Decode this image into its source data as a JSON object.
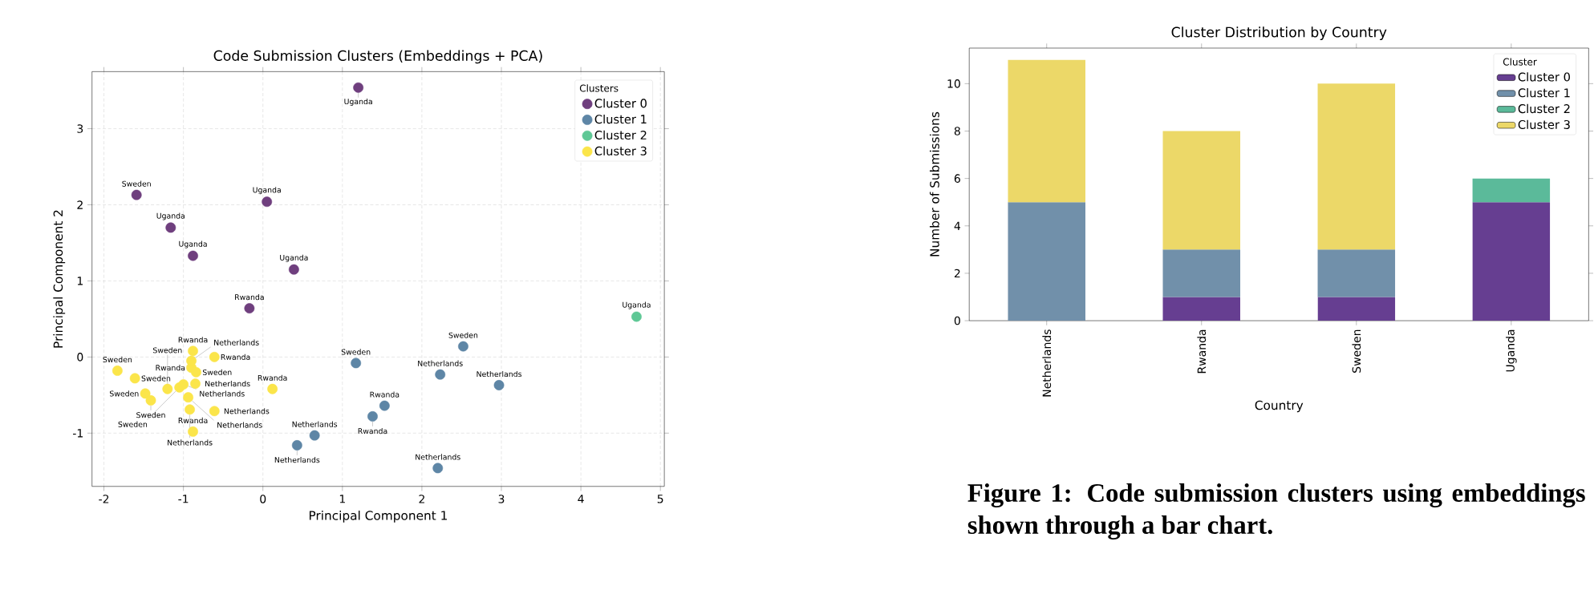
{
  "chart_data": [
    {
      "type": "scatter",
      "title": "Code Submission Clusters (Embeddings + PCA)",
      "xlabel": "Principal Component 1",
      "ylabel": "Principal Component 2",
      "legend_title": "Clusters",
      "legend": "top right",
      "grid": true,
      "marker": "circle",
      "xlim": [
        -2.15,
        5.05
      ],
      "ylim": [
        -1.7,
        3.75
      ],
      "xticks": [
        -2,
        -1,
        0,
        1,
        2,
        3,
        4,
        5
      ],
      "yticks": [
        -1,
        0,
        1,
        2,
        3
      ],
      "series": [
        {
          "name": "Cluster 0",
          "color": "#6f3f7e",
          "x": [
            1.2,
            -1.59,
            0.05,
            -1.16,
            -0.88,
            0.39,
            -0.17
          ],
          "values": [
            3.54,
            2.13,
            2.04,
            1.7,
            1.33,
            1.15,
            0.64
          ]
        },
        {
          "name": "Cluster 1",
          "color": "#5e86a6",
          "x": [
            2.52,
            1.17,
            2.23,
            2.97,
            1.53,
            1.38,
            0.65,
            0.43,
            2.2
          ],
          "values": [
            0.14,
            -0.08,
            -0.23,
            -0.37,
            -0.64,
            -0.78,
            -1.03,
            -1.16,
            -1.46
          ]
        },
        {
          "name": "Cluster 2",
          "color": "#5fc896",
          "x": [
            4.7
          ],
          "values": [
            0.53
          ]
        },
        {
          "name": "Cluster 3",
          "color": "#fbe54a",
          "x": [
            -0.88,
            -0.61,
            -0.9,
            0.12,
            -0.88,
            -1.83,
            -1.61,
            -0.84,
            -1.48,
            -1.41,
            -1.05,
            -1.2,
            -0.9,
            -1.0,
            -0.85,
            -0.94,
            -0.92,
            -0.61
          ],
          "values": [
            0.08,
            0.0,
            -0.14,
            -0.42,
            -0.98,
            -0.18,
            -0.28,
            -0.2,
            -0.48,
            -0.57,
            -0.4,
            -0.42,
            -0.05,
            -0.36,
            -0.35,
            -0.53,
            -0.69,
            -0.71
          ]
        }
      ],
      "annotations": [
        {
          "text": "Uganda",
          "x": 1.2,
          "y": 3.54
        },
        {
          "text": "Sweden",
          "x": -1.59,
          "y": 2.13
        },
        {
          "text": "Uganda",
          "x": 0.05,
          "y": 2.04
        },
        {
          "text": "Uganda",
          "x": -1.16,
          "y": 1.7
        },
        {
          "text": "Uganda",
          "x": -0.88,
          "y": 1.33
        },
        {
          "text": "Uganda",
          "x": 0.39,
          "y": 1.15
        },
        {
          "text": "Rwanda",
          "x": -0.17,
          "y": 0.64
        },
        {
          "text": "Sweden",
          "x": 2.52,
          "y": 0.14
        },
        {
          "text": "Sweden",
          "x": 1.17,
          "y": -0.08
        },
        {
          "text": "Netherlands",
          "x": 2.23,
          "y": -0.23
        },
        {
          "text": "Netherlands",
          "x": 2.97,
          "y": -0.37
        },
        {
          "text": "Rwanda",
          "x": 1.53,
          "y": -0.64
        },
        {
          "text": "Rwanda",
          "x": 1.38,
          "y": -0.78
        },
        {
          "text": "Netherlands",
          "x": 0.65,
          "y": -1.03
        },
        {
          "text": "Netherlands",
          "x": 0.43,
          "y": -1.16
        },
        {
          "text": "Netherlands",
          "x": 2.2,
          "y": -1.46
        },
        {
          "text": "Uganda",
          "x": 4.7,
          "y": 0.53
        },
        {
          "text": "Rwanda",
          "x": -0.88,
          "y": 0.08
        },
        {
          "text": "Rwanda",
          "x": -0.61,
          "y": 0.0
        },
        {
          "text": "Rwanda",
          "x": -0.9,
          "y": -0.14
        },
        {
          "text": "Rwanda",
          "x": 0.12,
          "y": -0.42
        },
        {
          "text": "Rwanda",
          "x": -0.88,
          "y": -0.98
        },
        {
          "text": "Sweden",
          "x": -1.83,
          "y": -0.18
        },
        {
          "text": "Sweden",
          "x": -1.61,
          "y": -0.28
        },
        {
          "text": "Sweden",
          "x": -0.84,
          "y": -0.2
        },
        {
          "text": "Sweden",
          "x": -1.48,
          "y": -0.48
        },
        {
          "text": "Sweden",
          "x": -1.41,
          "y": -0.57
        },
        {
          "text": "Sweden",
          "x": -1.05,
          "y": -0.4
        },
        {
          "text": "Sweden",
          "x": -1.2,
          "y": -0.42
        },
        {
          "text": "Netherlands",
          "x": -0.9,
          "y": -0.05
        },
        {
          "text": "Netherlands",
          "x": -1.0,
          "y": -0.36
        },
        {
          "text": "Netherlands",
          "x": -0.85,
          "y": -0.35
        },
        {
          "text": "Netherlands",
          "x": -0.94,
          "y": -0.53
        },
        {
          "text": "Netherlands",
          "x": -0.92,
          "y": -0.69
        },
        {
          "text": "Netherlands",
          "x": -0.61,
          "y": -0.71
        }
      ]
    },
    {
      "type": "bar",
      "stacked": true,
      "title": "Cluster Distribution by Country",
      "xlabel": "Country",
      "ylabel": "Number of Submissions",
      "legend_title": "Cluster",
      "legend": "top right",
      "categories": [
        "Netherlands",
        "Rwanda",
        "Sweden",
        "Uganda"
      ],
      "ylim": [
        0,
        11.5
      ],
      "yticks": [
        0,
        2,
        4,
        6,
        8,
        10
      ],
      "series": [
        {
          "name": "Cluster 0",
          "color": "#663e91",
          "values": [
            0,
            1,
            1,
            5
          ]
        },
        {
          "name": "Cluster 1",
          "color": "#7190aa",
          "values": [
            5,
            2,
            2,
            0
          ]
        },
        {
          "name": "Cluster 2",
          "color": "#5bba9a",
          "values": [
            0,
            0,
            0,
            1
          ]
        },
        {
          "name": "Cluster 3",
          "color": "#ecd868",
          "values": [
            6,
            5,
            7,
            0
          ]
        }
      ],
      "annotations": [
        "Figure 1: Code submission clusters using embeddings shown through a bar chart."
      ]
    }
  ]
}
